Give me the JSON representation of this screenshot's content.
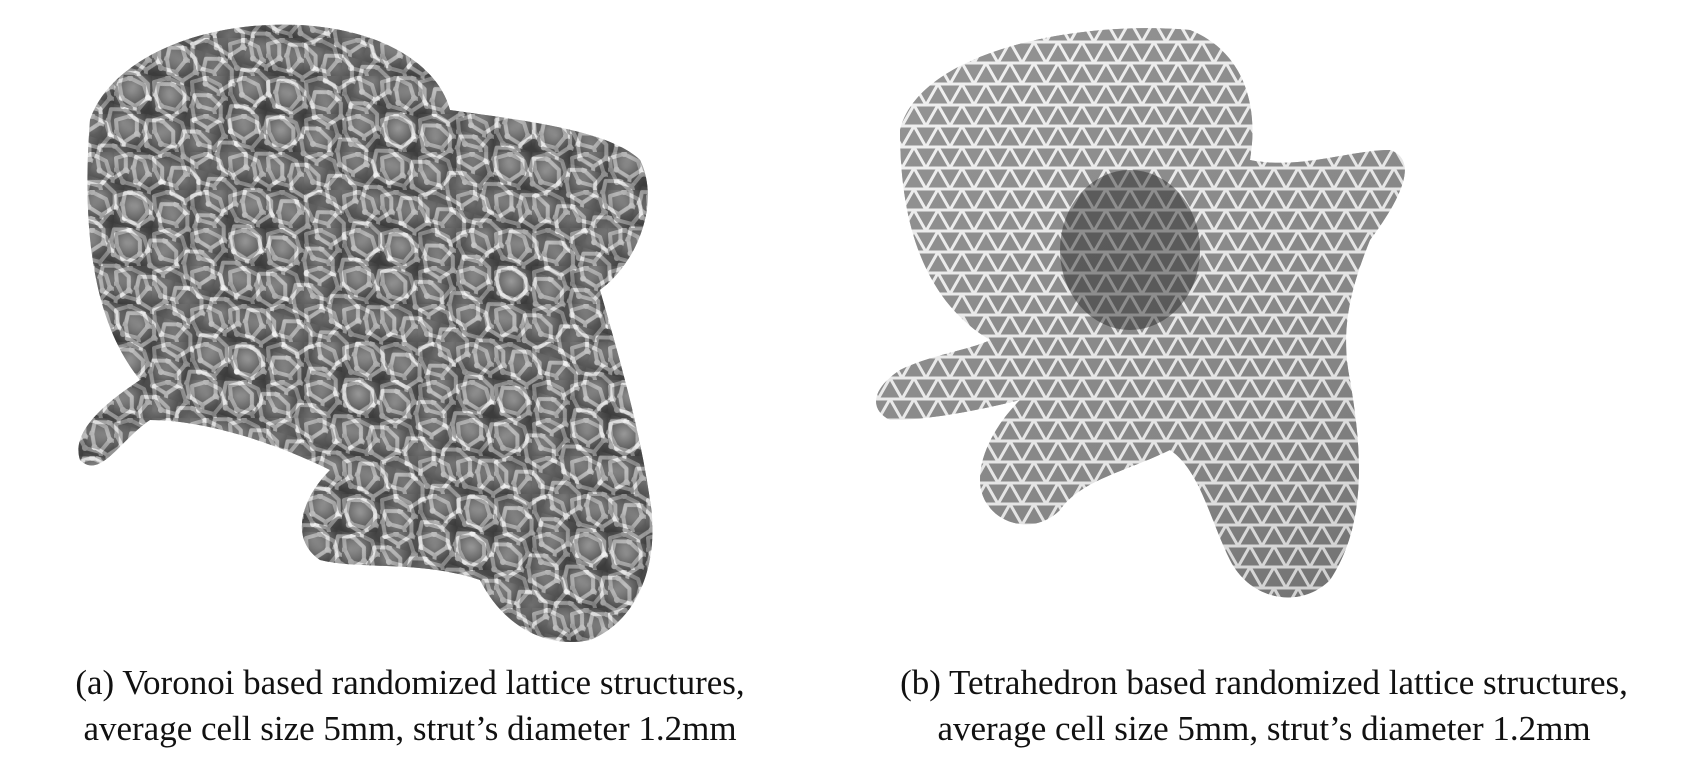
{
  "figure": {
    "panel_a": {
      "caption_line1": "(a) Voronoi based randomized lattice structures,",
      "caption_line2": "average cell size 5mm, strut’s diameter 1.2mm"
    },
    "panel_b": {
      "caption_line1": "(b) Tetrahedron based randomized lattice structures,",
      "caption_line2": "average cell size 5mm, strut’s diameter 1.2mm"
    },
    "colors": {
      "strut_light": "#e6e6e6",
      "strut_mid": "#b5b5b5",
      "strut_dark": "#3a3a3a"
    }
  }
}
